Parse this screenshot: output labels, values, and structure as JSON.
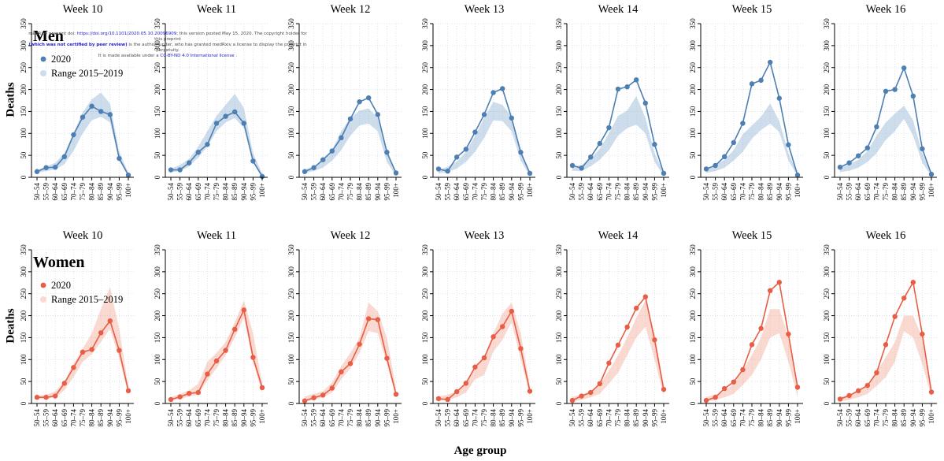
{
  "watermark": {
    "l1a": "medRxiv preprint doi: ",
    "l1b": "https://doi.org/10.1101/2020.05.10.20096909",
    "l1c": "; this version posted May 15, 2020. The copyright holder for this preprint",
    "l2a": "(which was not certified by peer review)",
    "l2b": " is the author/funder, who has granted medRxiv a license to display the preprint in perpetuity.",
    "l3a": "It is made available under a ",
    "l3b": "CC-BY-ND 4.0 International license",
    "l3c": " ."
  },
  "chart_data": {
    "type": "line",
    "title": "",
    "xlabel": "Age group",
    "ylabel": "Deaths",
    "ylim": [
      0,
      350
    ],
    "yticks": [
      0,
      50,
      100,
      150,
      200,
      250,
      300,
      350
    ],
    "grid": true,
    "legend": {
      "series_label": "2020",
      "band_label": "Range 2015–2019",
      "position": "top-left of first panel in each row"
    },
    "categories": [
      "50–54",
      "55–59",
      "60–64",
      "65–69",
      "70–74",
      "75–79",
      "80–84",
      "85–89",
      "90–94",
      "95–99",
      "100+"
    ],
    "rows": [
      {
        "label": "Men",
        "color": "#4d7fb2",
        "band_fill": "#7da5cd",
        "band_opacity": 0.38,
        "band_legend": "#ccdded",
        "panels": [
          {
            "week": "Week 10",
            "values": [
              13,
              22,
              23,
              47,
              97,
              137,
              162,
              150,
              143,
              43,
              5
            ],
            "band_low": [
              10,
              14,
              18,
              30,
              60,
              100,
              130,
              138,
              125,
              38,
              3
            ],
            "band_high": [
              16,
              25,
              33,
              55,
              100,
              148,
              178,
              193,
              168,
              58,
              10
            ]
          },
          {
            "week": "Week 11",
            "values": [
              17,
              17,
              33,
              57,
              75,
              123,
              139,
              149,
              123,
              37,
              2
            ],
            "band_low": [
              12,
              14,
              25,
              45,
              70,
              105,
              125,
              135,
              112,
              33,
              2
            ],
            "band_high": [
              20,
              28,
              42,
              70,
              105,
              140,
              165,
              190,
              158,
              55,
              9
            ]
          },
          {
            "week": "Week 12",
            "values": [
              13,
              22,
              40,
              60,
              90,
              133,
              172,
              181,
              143,
              57,
              10
            ],
            "band_low": [
              10,
              14,
              22,
              38,
              62,
              95,
              118,
              122,
              105,
              35,
              3
            ],
            "band_high": [
              18,
              25,
              38,
              62,
              105,
              135,
              152,
              157,
              135,
              55,
              10
            ]
          },
          {
            "week": "Week 13",
            "values": [
              19,
              14,
              46,
              64,
              103,
              143,
              193,
              202,
              135,
              57,
              9
            ],
            "band_low": [
              9,
              12,
              20,
              35,
              58,
              90,
              130,
              128,
              105,
              38,
              3
            ],
            "band_high": [
              17,
              24,
              36,
              58,
              95,
              135,
              172,
              165,
              138,
              57,
              10
            ]
          },
          {
            "week": "Week 14",
            "values": [
              27,
              21,
              46,
              77,
              113,
              201,
              206,
              222,
              169,
              75,
              9
            ],
            "band_low": [
              15,
              14,
              25,
              40,
              62,
              95,
              112,
              120,
              100,
              35,
              3
            ],
            "band_high": [
              25,
              28,
              42,
              65,
              100,
              140,
              152,
              185,
              135,
              55,
              10
            ]
          },
          {
            "week": "Week 15",
            "values": [
              19,
              27,
              47,
              79,
              123,
              213,
              221,
              262,
              180,
              74,
              5
            ],
            "band_low": [
              10,
              14,
              22,
              38,
              58,
              88,
              108,
              122,
              103,
              38,
              3
            ],
            "band_high": [
              20,
              28,
              40,
              62,
              98,
              118,
              138,
              168,
              128,
              55,
              10
            ]
          },
          {
            "week": "Week 16",
            "values": [
              23,
              33,
              49,
              67,
              115,
              196,
              200,
              249,
              185,
              65,
              7
            ],
            "band_low": [
              12,
              15,
              22,
              35,
              55,
              85,
              105,
              133,
              95,
              33,
              3
            ],
            "band_high": [
              22,
              30,
              40,
              60,
              95,
              125,
              145,
              163,
              130,
              55,
              10
            ]
          }
        ]
      },
      {
        "label": "Women",
        "color": "#e85d45",
        "band_fill": "#f0917a",
        "band_opacity": 0.35,
        "band_legend": "#f9d9d0",
        "panels": [
          {
            "week": "Week 10",
            "values": [
              14,
              14,
              17,
              46,
              82,
              117,
              123,
              161,
              188,
              121,
              29
            ],
            "band_low": [
              10,
              10,
              14,
              30,
              60,
              95,
              112,
              140,
              170,
              103,
              20
            ],
            "band_high": [
              18,
              20,
              28,
              50,
              90,
              125,
              160,
              215,
              265,
              170,
              38
            ]
          },
          {
            "week": "Week 11",
            "values": [
              9,
              15,
              23,
              25,
              67,
              97,
              121,
              169,
              213,
              105,
              36
            ],
            "band_low": [
              6,
              10,
              16,
              20,
              52,
              80,
              110,
              150,
              195,
              93,
              25
            ],
            "band_high": [
              14,
              22,
              30,
              45,
              95,
              115,
              140,
              185,
              235,
              160,
              45
            ]
          },
          {
            "week": "Week 12",
            "values": [
              6,
              13,
              19,
              35,
              72,
              91,
              135,
              193,
              191,
              103,
              21
            ],
            "band_low": [
              4,
              8,
              14,
              25,
              55,
              80,
              115,
              165,
              160,
              90,
              15
            ],
            "band_high": [
              16,
              22,
              28,
              48,
              85,
              115,
              150,
              230,
              210,
              150,
              35
            ]
          },
          {
            "week": "Week 13",
            "values": [
              11,
              9,
              27,
              46,
              83,
              104,
              152,
              175,
              210,
              125,
              28
            ],
            "band_low": [
              6,
              8,
              14,
              25,
              55,
              65,
              118,
              145,
              185,
              100,
              18
            ],
            "band_high": [
              16,
              20,
              28,
              45,
              85,
              105,
              160,
              205,
              230,
              160,
              40
            ]
          },
          {
            "week": "Week 14",
            "values": [
              7,
              17,
              25,
              45,
              92,
              133,
              174,
              217,
              243,
              145,
              32
            ],
            "band_low": [
              5,
              8,
              14,
              22,
              45,
              70,
              110,
              150,
              175,
              100,
              18
            ],
            "band_high": [
              15,
              20,
              28,
              45,
              75,
              110,
              150,
              195,
              235,
              160,
              40
            ]
          },
          {
            "week": "Week 15",
            "values": [
              7,
              14,
              34,
              49,
              77,
              134,
              171,
              257,
              276,
              158,
              37
            ],
            "band_low": [
              5,
              8,
              14,
              22,
              42,
              65,
              100,
              150,
              160,
              95,
              15
            ],
            "band_high": [
              15,
              20,
              28,
              45,
              75,
              110,
              150,
              215,
              215,
              150,
              38
            ]
          },
          {
            "week": "Week 16",
            "values": [
              10,
              18,
              29,
              41,
              70,
              134,
              198,
              240,
              276,
              158,
              26
            ],
            "band_low": [
              5,
              8,
              14,
              22,
              40,
              60,
              95,
              165,
              150,
              90,
              15
            ],
            "band_high": [
              15,
              20,
              28,
              42,
              72,
              105,
              140,
              200,
              200,
              150,
              35
            ]
          }
        ]
      }
    ]
  }
}
